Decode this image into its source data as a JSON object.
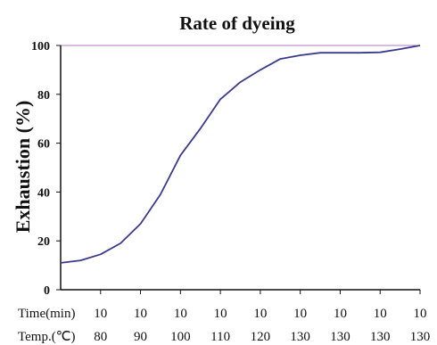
{
  "chart_data": {
    "type": "line",
    "title": "Rate of dyeing",
    "ylabel": "Exhaustion (%)",
    "ylim": [
      0,
      100
    ],
    "yticks": [
      "0",
      "20",
      "40",
      "60",
      "80",
      "100"
    ],
    "grid": false,
    "legend": "none",
    "colors": {
      "line": "#3a3a8c",
      "axis": "#111111",
      "top_rule": "#b07abf"
    },
    "x_rows": [
      {
        "label": "Time(min)",
        "values": [
          "10",
          "10",
          "10",
          "10",
          "10",
          "10",
          "10",
          "10",
          "10"
        ]
      },
      {
        "label": "Temp.(℃)",
        "values": [
          "80",
          "90",
          "100",
          "110",
          "120",
          "130",
          "130",
          "130",
          "130"
        ]
      }
    ],
    "x": [
      0,
      0.5,
      1,
      1.5,
      2,
      2.5,
      3,
      3.5,
      4,
      4.5,
      5,
      5.5,
      6,
      6.5,
      7,
      7.5,
      8,
      8.5,
      9
    ],
    "series": [
      {
        "values": [
          11,
          12,
          14.5,
          19,
          27,
          39,
          55,
          66,
          78,
          85,
          90,
          94.5,
          96,
          97,
          97,
          97,
          97.2,
          98.5,
          100
        ]
      }
    ]
  }
}
